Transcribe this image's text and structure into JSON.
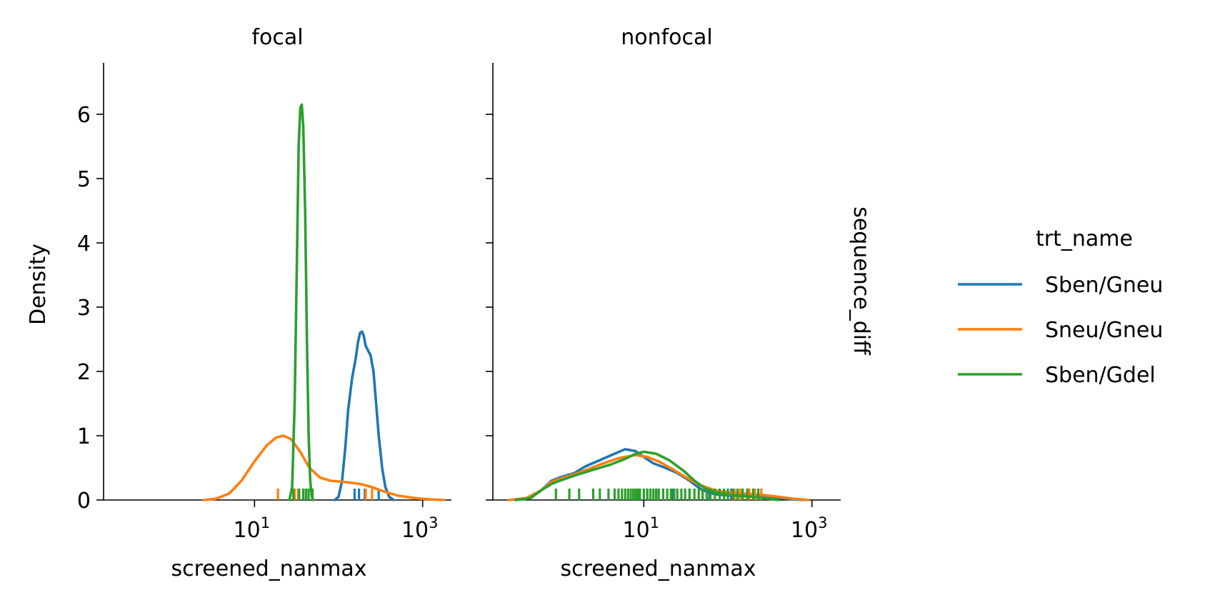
{
  "figure": {
    "row_label": "sequence_diff",
    "ylabel": "Density",
    "legend": {
      "title": "trt_name",
      "placement": "right",
      "entries": [
        {
          "name": "Sben/Gneu",
          "color": "#1f77b4"
        },
        {
          "name": "Sneu/Gneu",
          "color": "#ff7f0e"
        },
        {
          "name": "Sben/Gdel",
          "color": "#2ca02c"
        }
      ]
    }
  },
  "chart_data": [
    {
      "type": "line",
      "title": "focal",
      "xlabel": "screened_nanmax",
      "ylabel": "Density",
      "xscale": "log",
      "xlim": [
        0.16,
        2200
      ],
      "ylim": [
        0,
        6.8
      ],
      "yticks": [
        0,
        1,
        2,
        3,
        4,
        5,
        6
      ],
      "xticks": [
        {
          "value": 10,
          "base": "10",
          "exp": "1"
        },
        {
          "value": 1000,
          "base": "10",
          "exp": "3"
        }
      ],
      "grid": false,
      "series": [
        {
          "name": "Sben/Gneu",
          "color": "#1f77b4",
          "points": [
            [
              90,
              0
            ],
            [
              100,
              0.05
            ],
            [
              110,
              0.3
            ],
            [
              120,
              0.8
            ],
            [
              130,
              1.4
            ],
            [
              145,
              1.9
            ],
            [
              160,
              2.2
            ],
            [
              170,
              2.45
            ],
            [
              180,
              2.6
            ],
            [
              190,
              2.62
            ],
            [
              200,
              2.55
            ],
            [
              210,
              2.4
            ],
            [
              225,
              2.32
            ],
            [
              240,
              2.25
            ],
            [
              260,
              2.0
            ],
            [
              280,
              1.5
            ],
            [
              300,
              1.0
            ],
            [
              330,
              0.5
            ],
            [
              360,
              0.2
            ],
            [
              400,
              0.05
            ],
            [
              450,
              0
            ]
          ],
          "rug": [
            155,
            175,
            205,
            300
          ]
        },
        {
          "name": "Sneu/Gneu",
          "color": "#ff7f0e",
          "points": [
            [
              2.5,
              0
            ],
            [
              3.5,
              0.02
            ],
            [
              5,
              0.1
            ],
            [
              7,
              0.3
            ],
            [
              10,
              0.6
            ],
            [
              14,
              0.85
            ],
            [
              18,
              0.97
            ],
            [
              22,
              1.0
            ],
            [
              27,
              0.95
            ],
            [
              35,
              0.75
            ],
            [
              45,
              0.5
            ],
            [
              60,
              0.35
            ],
            [
              80,
              0.3
            ],
            [
              120,
              0.28
            ],
            [
              180,
              0.25
            ],
            [
              250,
              0.2
            ],
            [
              350,
              0.13
            ],
            [
              500,
              0.07
            ],
            [
              800,
              0.03
            ],
            [
              1200,
              0.01
            ],
            [
              1800,
              0
            ]
          ],
          "rug": [
            19,
            30,
            33,
            38,
            210,
            250
          ]
        },
        {
          "name": "Sben/Gdel",
          "color": "#2ca02c",
          "points": [
            [
              26,
              0
            ],
            [
              28,
              0.2
            ],
            [
              30,
              1.5
            ],
            [
              32,
              3.8
            ],
            [
              33.5,
              5.5
            ],
            [
              35,
              6.1
            ],
            [
              36.5,
              6.15
            ],
            [
              38,
              5.8
            ],
            [
              40,
              4.5
            ],
            [
              42,
              2.5
            ],
            [
              44,
              1.0
            ],
            [
              46,
              0.3
            ],
            [
              48,
              0.05
            ],
            [
              50,
              0
            ]
          ],
          "rug": [
            29,
            34,
            38,
            41,
            44,
            49
          ]
        }
      ]
    },
    {
      "type": "line",
      "title": "nonfocal",
      "xlabel": "screened_nanmax",
      "ylabel": "",
      "xscale": "log",
      "xlim": [
        0.16,
        2200
      ],
      "ylim": [
        0,
        6.8
      ],
      "yticks": [
        0,
        1,
        2,
        3,
        4,
        5,
        6
      ],
      "xticks": [
        {
          "value": 10,
          "base": "10",
          "exp": "1"
        },
        {
          "value": 1000,
          "base": "10",
          "exp": "3"
        }
      ],
      "grid": false,
      "series": [
        {
          "name": "Sben/Gneu",
          "color": "#1f77b4",
          "points": [
            [
              0.3,
              0
            ],
            [
              0.45,
              0.03
            ],
            [
              0.6,
              0.15
            ],
            [
              0.8,
              0.3
            ],
            [
              1.0,
              0.35
            ],
            [
              1.5,
              0.42
            ],
            [
              2.0,
              0.52
            ],
            [
              3.0,
              0.62
            ],
            [
              4.5,
              0.72
            ],
            [
              6.0,
              0.79
            ],
            [
              8.0,
              0.76
            ],
            [
              10,
              0.67
            ],
            [
              13,
              0.57
            ],
            [
              18,
              0.5
            ],
            [
              25,
              0.42
            ],
            [
              35,
              0.3
            ],
            [
              50,
              0.15
            ],
            [
              70,
              0.09
            ],
            [
              100,
              0.07
            ],
            [
              150,
              0.06
            ],
            [
              250,
              0.05
            ],
            [
              400,
              0.03
            ],
            [
              600,
              0.01
            ],
            [
              800,
              0
            ]
          ],
          "rug": [
            8,
            11,
            15,
            22,
            35,
            60,
            110,
            170
          ]
        },
        {
          "name": "Sneu/Gneu",
          "color": "#ff7f0e",
          "points": [
            [
              0.25,
              0
            ],
            [
              0.4,
              0.03
            ],
            [
              0.6,
              0.15
            ],
            [
              0.8,
              0.28
            ],
            [
              1.0,
              0.33
            ],
            [
              1.5,
              0.4
            ],
            [
              2.0,
              0.46
            ],
            [
              3.0,
              0.55
            ],
            [
              5.0,
              0.65
            ],
            [
              8.0,
              0.7
            ],
            [
              11,
              0.67
            ],
            [
              15,
              0.6
            ],
            [
              22,
              0.48
            ],
            [
              30,
              0.37
            ],
            [
              45,
              0.24
            ],
            [
              70,
              0.15
            ],
            [
              100,
              0.12
            ],
            [
              150,
              0.1
            ],
            [
              250,
              0.08
            ],
            [
              400,
              0.05
            ],
            [
              600,
              0.02
            ],
            [
              900,
              0
            ]
          ],
          "rug": [
            50,
            80,
            100,
            120,
            140,
            150,
            180,
            210,
            250
          ]
        },
        {
          "name": "Sben/Gdel",
          "color": "#2ca02c",
          "points": [
            [
              0.3,
              0
            ],
            [
              0.45,
              0.03
            ],
            [
              0.6,
              0.15
            ],
            [
              0.8,
              0.25
            ],
            [
              1.0,
              0.3
            ],
            [
              1.5,
              0.38
            ],
            [
              2.5,
              0.47
            ],
            [
              4.0,
              0.55
            ],
            [
              6.0,
              0.64
            ],
            [
              8.0,
              0.72
            ],
            [
              10,
              0.75
            ],
            [
              14,
              0.72
            ],
            [
              20,
              0.62
            ],
            [
              30,
              0.45
            ],
            [
              40,
              0.3
            ],
            [
              55,
              0.17
            ],
            [
              80,
              0.1
            ],
            [
              120,
              0.07
            ],
            [
              200,
              0.05
            ],
            [
              300,
              0.02
            ],
            [
              400,
              0
            ]
          ],
          "rug": [
            0.9,
            1.3,
            1.7,
            2.5,
            3,
            3.8,
            4.5,
            5,
            5.5,
            6,
            6.5,
            7,
            7.5,
            8,
            8.5,
            9,
            10,
            11,
            12,
            13,
            14,
            15,
            17,
            19,
            21,
            23,
            25,
            28,
            31,
            35,
            40,
            45,
            50,
            56,
            62,
            70,
            80,
            90,
            100,
            115,
            130,
            150,
            170,
            200,
            230
          ]
        }
      ]
    }
  ]
}
